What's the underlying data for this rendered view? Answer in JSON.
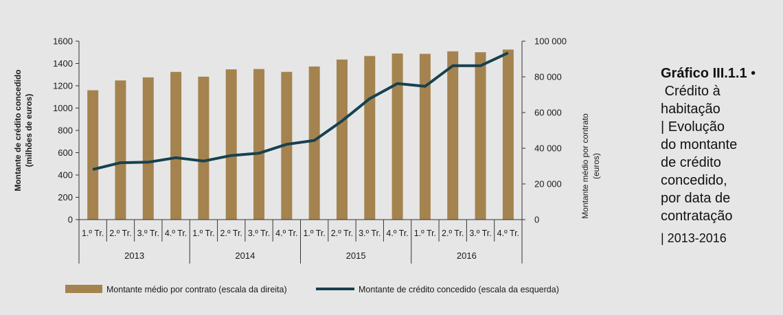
{
  "figure": {
    "title_label": "Gráfico III.1.1",
    "bullet": "•",
    "title_lines": [
      " Crédito à",
      "habitação",
      "| Evolução",
      "do montante",
      "de crédito",
      "concedido,",
      "por data de",
      "contratação"
    ],
    "period": "| 2013-2016"
  },
  "colors": {
    "background": "#e6e6e6",
    "bar": "#a5834f",
    "line": "#17414f",
    "axis": "#333333"
  },
  "chart_data": {
    "type": "bar+line",
    "categories": [
      "1.º Tr.",
      "2.º Tr.",
      "3.º Tr.",
      "4.º Tr.",
      "1.º Tr.",
      "2.º Tr.",
      "3.º Tr.",
      "4.º Tr.",
      "1.º Tr.",
      "2.º Tr.",
      "3.º Tr.",
      "4.º Tr.",
      "1.º Tr.",
      "2.º Tr.",
      "3.º Tr.",
      "4.º Tr."
    ],
    "year_groups": [
      {
        "label": "2013",
        "count": 4
      },
      {
        "label": "2014",
        "count": 4
      },
      {
        "label": "2015",
        "count": 4
      },
      {
        "label": "2016",
        "count": 4
      }
    ],
    "series": [
      {
        "name": "Montante médio por contrato (escala da direita)",
        "type": "bar",
        "axis": "right",
        "values": [
          72500,
          78000,
          79700,
          82800,
          80100,
          84200,
          84400,
          82800,
          85800,
          89700,
          91700,
          93100,
          92900,
          94300,
          93800,
          95300
        ]
      },
      {
        "name": "Montante de crédito concedido (escala da esquerda)",
        "type": "line",
        "axis": "left",
        "values": [
          450,
          510,
          515,
          555,
          525,
          575,
          595,
          675,
          710,
          885,
          1085,
          1220,
          1195,
          1380,
          1380,
          1495
        ]
      }
    ],
    "left_axis": {
      "label_line1": "Montante  de crédito concedido",
      "label_line2": "(milhões de euros)",
      "ylim": [
        0,
        1600
      ],
      "ticks": [
        "0",
        "200",
        "400",
        "600",
        "800",
        "1000",
        "1200",
        "1400",
        "1600"
      ]
    },
    "right_axis": {
      "label_line1": "Montante médio por contrato",
      "label_line2": "(euros)",
      "ylim": [
        0,
        100000
      ],
      "ticks": [
        "0",
        "20 000",
        "40 000",
        "60 000",
        "80 000",
        "100 000"
      ]
    },
    "legend_position": "bottom",
    "grid": false
  }
}
